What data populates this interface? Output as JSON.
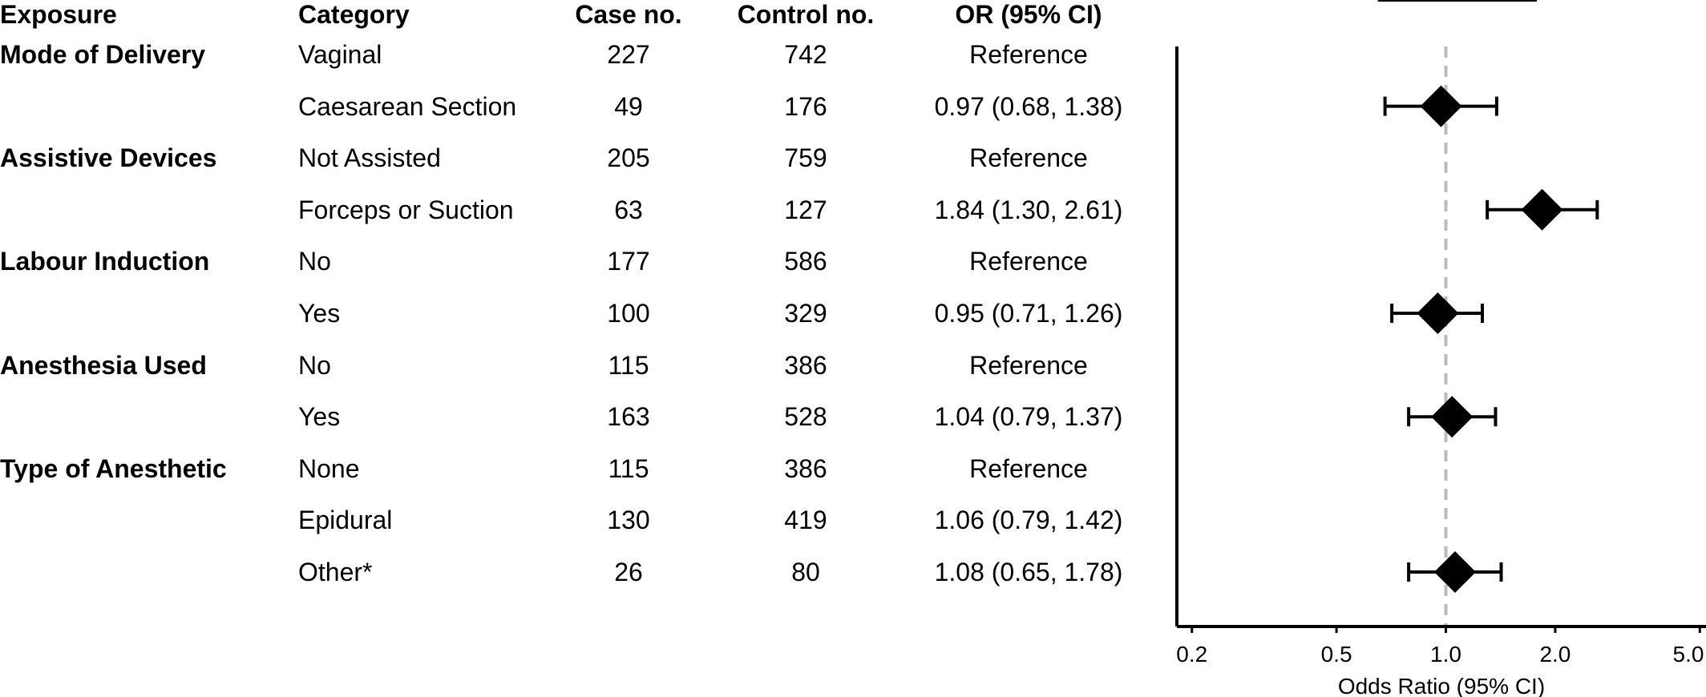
{
  "table": {
    "headers": {
      "exposure": "Exposure",
      "category": "Category",
      "case_no": "Case no.",
      "control_no": "Control no.",
      "or_ci": "OR (95% CI)"
    },
    "groups": [
      {
        "label": "Mode of Delivery",
        "rows": [
          {
            "category": "Vaginal",
            "case": "227",
            "control": "742",
            "or": "Reference"
          },
          {
            "category": "Caesarean Section",
            "case": "49",
            "control": "176",
            "or": "0.97 (0.68, 1.38)"
          }
        ]
      },
      {
        "label": "Assistive Devices",
        "rows": [
          {
            "category": "Not Assisted",
            "case": "205",
            "control": "759",
            "or": "Reference"
          },
          {
            "category": "Forceps or Suction",
            "case": "63",
            "control": "127",
            "or": "1.84 (1.30, 2.61)"
          }
        ]
      },
      {
        "label": "Labour Induction",
        "rows": [
          {
            "category": "No",
            "case": "177",
            "control": "586",
            "or": "Reference"
          },
          {
            "category": "Yes",
            "case": "100",
            "control": "329",
            "or": "0.95 (0.71, 1.26)"
          }
        ]
      },
      {
        "label": "Anesthesia Used",
        "rows": [
          {
            "category": "No",
            "case": "115",
            "control": "386",
            "or": "Reference"
          },
          {
            "category": "Yes",
            "case": "163",
            "control": "528",
            "or": "1.04 (0.79, 1.37)"
          }
        ]
      },
      {
        "label": "Type of Anesthetic",
        "rows": [
          {
            "category": "None",
            "case": "115",
            "control": "386",
            "or": "Reference"
          },
          {
            "category": "Epidural",
            "case": "130",
            "control": "419",
            "or": "1.06 (0.79, 1.42)"
          },
          {
            "category": "Other*",
            "case": "26",
            "control": "80",
            "or": "1.08 (0.65, 1.78)"
          }
        ]
      }
    ]
  },
  "chart_data": {
    "type": "scatter",
    "subtype": "forest-plot",
    "x_scale": "log",
    "xlabel": "Odds Ratio (95% CI)",
    "xlim": [
      0.18,
      5.2
    ],
    "xticks": [
      0.2,
      0.5,
      1.0,
      2.0,
      5.0
    ],
    "xtick_labels": [
      "0.2",
      "0.5",
      "1.0",
      "2.0",
      "5.0"
    ],
    "reference_line": 1.0,
    "points": [
      {
        "row": 2,
        "or": 0.97,
        "lower": 0.68,
        "upper": 1.38
      },
      {
        "row": 4,
        "or": 1.84,
        "lower": 1.3,
        "upper": 2.61
      },
      {
        "row": 6,
        "or": 0.95,
        "lower": 0.71,
        "upper": 1.26
      },
      {
        "row": 8,
        "or": 1.04,
        "lower": 0.79,
        "upper": 1.37
      },
      {
        "row": 11,
        "or": 1.06,
        "lower": 0.79,
        "upper": 1.42
      },
      {
        "row": 12,
        "or": 1.08,
        "lower": 0.65,
        "upper": 1.78
      }
    ],
    "marker_sizes": {
      "11": 1.0,
      "12": 0.55
    },
    "colors": {
      "marker": "#000000",
      "reference_line": "#bbbbbb",
      "axis": "#000000"
    }
  }
}
